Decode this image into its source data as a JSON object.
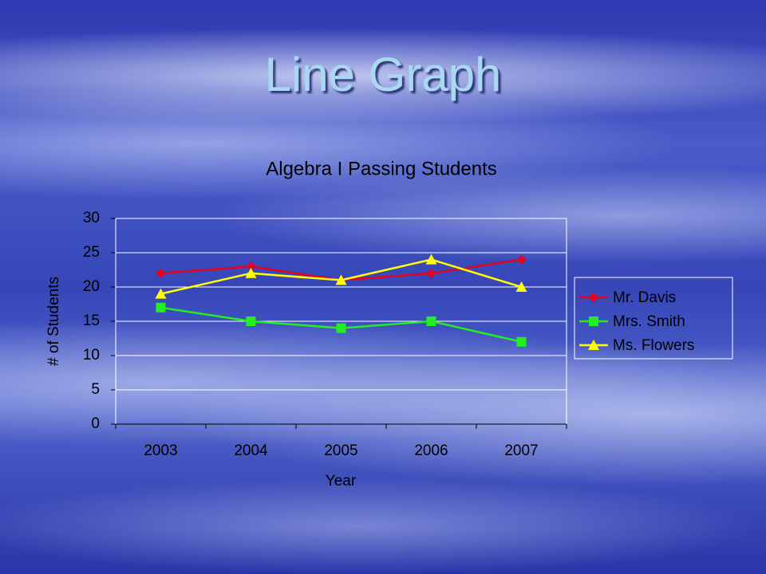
{
  "slide": {
    "title": "Line Graph"
  },
  "chart_data": {
    "type": "line",
    "title": "Algebra I Passing Students",
    "x_label": "Year",
    "y_label": "# of Students",
    "categories": [
      "2003",
      "2004",
      "2005",
      "2006",
      "2007"
    ],
    "series": [
      {
        "name": "Mr. Davis",
        "color": "#e8001c",
        "marker": "diamond",
        "values": [
          22,
          23,
          21,
          22,
          24
        ]
      },
      {
        "name": "Mrs. Smith",
        "color": "#22ee22",
        "marker": "square",
        "values": [
          17,
          15,
          14,
          15,
          12
        ]
      },
      {
        "name": "Ms. Flowers",
        "color": "#ffff00",
        "marker": "triangle",
        "values": [
          19,
          22,
          21,
          24,
          20
        ]
      }
    ],
    "ylim": [
      0,
      30
    ],
    "yticks": [
      0,
      5,
      10,
      15,
      20,
      25,
      30
    ],
    "grid": true,
    "legend": "right"
  }
}
